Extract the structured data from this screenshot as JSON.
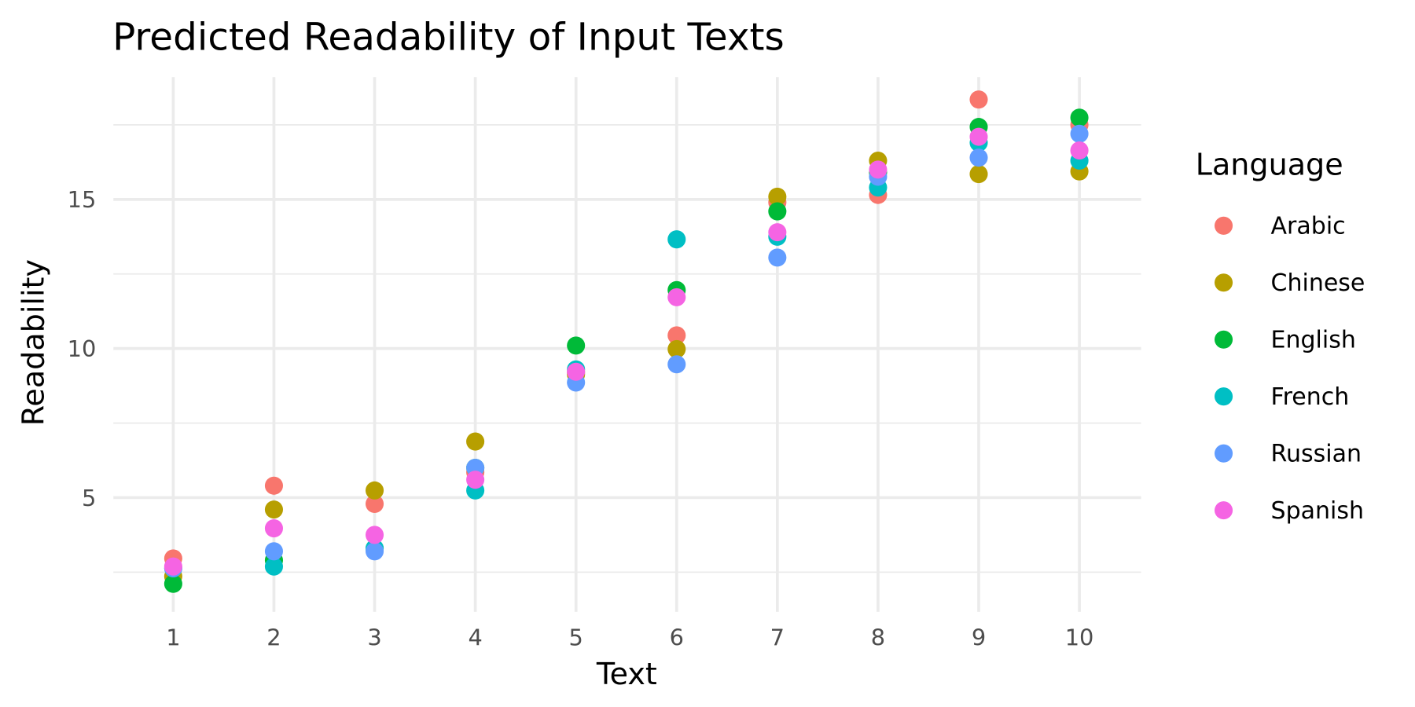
{
  "chart_data": {
    "type": "scatter",
    "title": "Predicted Readability of Input Texts",
    "xlabel": "Text",
    "ylabel": "Readability",
    "x_categories": [
      "1",
      "2",
      "3",
      "4",
      "5",
      "6",
      "7",
      "8",
      "9",
      "10"
    ],
    "y_ticks": [
      5,
      10,
      15
    ],
    "ylim": [
      1.7,
      18.7
    ],
    "grid": true,
    "legend": {
      "title": "Language",
      "placement": "right"
    },
    "series": [
      {
        "name": "Arabic",
        "color": "#F8766D",
        "values": [
          2.96,
          5.4,
          4.79,
          5.85,
          9.2,
          10.44,
          14.9,
          15.15,
          18.35,
          17.5
        ]
      },
      {
        "name": "Chinese",
        "color": "#B79F00",
        "values": [
          2.36,
          4.6,
          5.24,
          6.88,
          9.13,
          9.98,
          15.09,
          16.3,
          15.85,
          15.94
        ]
      },
      {
        "name": "English",
        "color": "#00BA38",
        "values": [
          2.11,
          2.9,
          3.3,
          6.0,
          10.1,
          11.96,
          14.6,
          15.9,
          17.43,
          17.74
        ]
      },
      {
        "name": "French",
        "color": "#00BFC4",
        "values": [
          2.63,
          2.69,
          3.3,
          5.24,
          9.3,
          13.66,
          13.75,
          15.4,
          16.9,
          16.3
        ]
      },
      {
        "name": "Russian",
        "color": "#619CFF",
        "values": [
          2.63,
          3.2,
          3.2,
          6.0,
          8.86,
          9.47,
          13.05,
          15.76,
          16.4,
          17.2
        ]
      },
      {
        "name": "Spanish",
        "color": "#F564E3",
        "values": [
          2.69,
          3.97,
          3.75,
          5.6,
          9.22,
          11.72,
          13.9,
          16.0,
          17.1,
          16.64
        ]
      }
    ]
  }
}
